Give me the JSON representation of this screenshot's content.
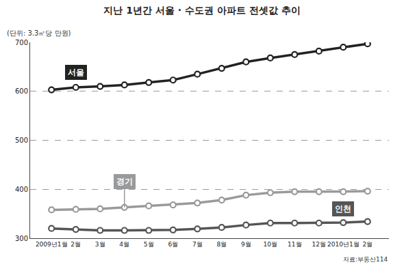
{
  "chart_data": {
    "type": "line",
    "title": "지난 1년간 서울 · 수도권 아파트 전셋값 추이",
    "subtitle": "(단위: 3.3㎡당 만원)",
    "annotations": [
      "자료:부동산114"
    ],
    "categories": [
      "2009년1월",
      "2월",
      "3월",
      "4월",
      "5월",
      "6월",
      "7월",
      "8월",
      "9월",
      "10월",
      "11월",
      "12월",
      "2010년1월",
      "2월"
    ],
    "series": [
      {
        "name": "서울",
        "color": "#222222",
        "values": [
          603,
          608,
          610,
          613,
          618,
          623,
          635,
          647,
          660,
          668,
          675,
          682,
          690,
          697
        ]
      },
      {
        "name": "경기",
        "color": "#9a9a9a",
        "values": [
          358,
          359,
          360,
          363,
          366,
          368,
          372,
          378,
          388,
          393,
          395,
          395,
          395,
          396
        ]
      },
      {
        "name": "인천",
        "color": "#555555",
        "values": [
          320,
          318,
          316,
          316,
          316,
          317,
          319,
          322,
          327,
          331,
          331,
          331,
          332,
          334
        ]
      }
    ],
    "ylim": [
      300,
      700
    ],
    "yticks": [
      300,
      400,
      500,
      600,
      700
    ],
    "grid": true,
    "marker": "circle",
    "line_style": "solid"
  }
}
